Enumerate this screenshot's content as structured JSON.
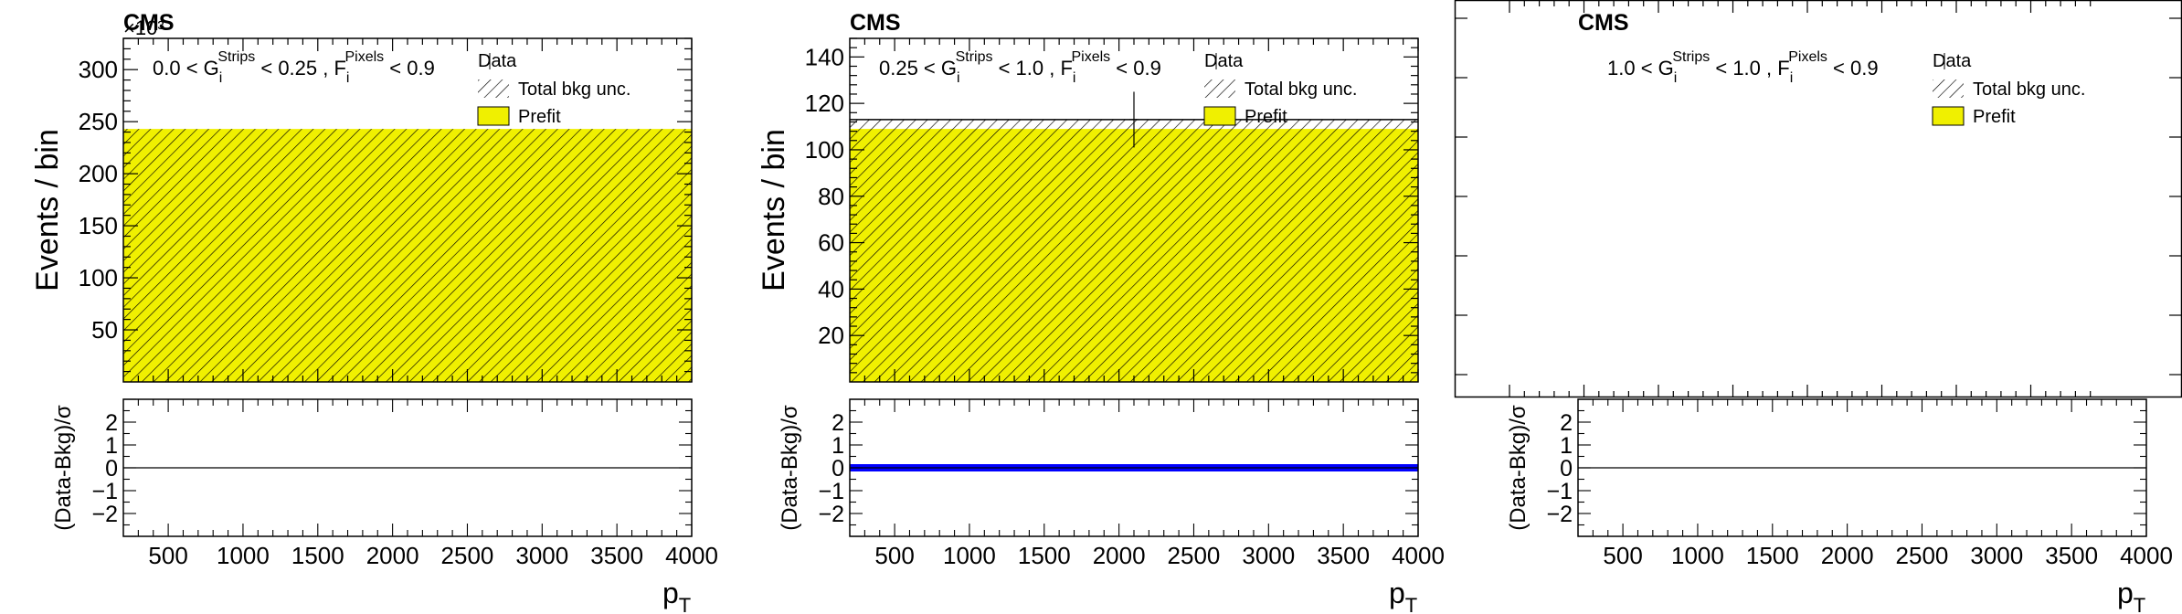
{
  "colors": {
    "prefit_fill": "#f0f000",
    "hatch": "#000000",
    "ratio_band": "#0000ff",
    "axis": "#000000",
    "background": "#ffffff"
  },
  "chart_data": [
    {
      "type": "bar",
      "experiment_label": "CMS",
      "exponent_label": "×10³",
      "region_label": "0.0 < G_i^Strips < 0.25 , F_i^Pixels < 0.9",
      "region_parts": {
        "lo": "0.0",
        "mid": "0.25",
        "hi": "0.9"
      },
      "ylabel": "Events / bin",
      "xlabel": "p_T",
      "xlim": [
        200,
        4000
      ],
      "ylim": [
        0,
        330
      ],
      "yticks": [
        50,
        100,
        150,
        200,
        250,
        300
      ],
      "xticks": [
        500,
        1000,
        1500,
        2000,
        2500,
        3000,
        3500,
        4000
      ],
      "legend": [
        "Data",
        "Total bkg unc.",
        "Prefit"
      ],
      "legend_position": "top-right",
      "bins": [
        {
          "x_low": 200,
          "x_high": 4000,
          "prefit": 243
        }
      ],
      "data_points": [],
      "ratio": {
        "ylabel": "(Data-Bkg)/σ",
        "ylim": [
          -3,
          3
        ],
        "yticks": [
          -2,
          -1,
          0,
          1,
          2
        ],
        "values": [],
        "band": false
      }
    },
    {
      "type": "bar",
      "experiment_label": "CMS",
      "exponent_label": "",
      "region_label": "0.25 < G_i^Strips < 1.0 , F_i^Pixels < 0.9",
      "region_parts": {
        "lo": "0.25",
        "mid": "1.0",
        "hi": "0.9"
      },
      "ylabel": "Events / bin",
      "xlabel": "p_T",
      "xlim": [
        200,
        4000
      ],
      "ylim": [
        0,
        148
      ],
      "yticks": [
        20,
        40,
        60,
        80,
        100,
        120,
        140
      ],
      "xticks": [
        500,
        1000,
        1500,
        2000,
        2500,
        3000,
        3500,
        4000
      ],
      "legend": [
        "Data",
        "Total bkg unc.",
        "Prefit"
      ],
      "legend_position": "top-right",
      "bins": [
        {
          "x_low": 200,
          "x_high": 4000,
          "prefit": 109,
          "unc": 4
        }
      ],
      "data_points": [
        {
          "x": 2100,
          "y": 113,
          "yerr": 12
        }
      ],
      "ratio": {
        "ylabel": "(Data-Bkg)/σ",
        "ylim": [
          -3,
          3
        ],
        "yticks": [
          -2,
          -1,
          0,
          1,
          2
        ],
        "values": [
          0
        ],
        "band": true
      }
    },
    {
      "type": "bar",
      "experiment_label": "CMS",
      "exponent_label": "",
      "region_label": "1.0 < G_i^Strips < 1.0 , F_i^Pixels < 0.9",
      "region_parts": {
        "lo": "1.0",
        "mid": "1.0",
        "hi": "0.9"
      },
      "ylabel": "",
      "xlabel": "p_T",
      "xlim": [
        200,
        4000
      ],
      "ylim": [
        0,
        1
      ],
      "yticks": [],
      "xticks": [
        500,
        1000,
        1500,
        2000,
        2500,
        3000,
        3500,
        4000
      ],
      "legend": [
        "Data",
        "Total bkg unc.",
        "Prefit"
      ],
      "legend_position": "top-right",
      "bins": [],
      "data_points": [],
      "ratio": {
        "ylabel": "(Data-Bkg)/σ",
        "ylim": [
          -3,
          3
        ],
        "yticks": [
          -2,
          -1,
          0,
          1,
          2
        ],
        "values": [],
        "band": false
      }
    }
  ]
}
